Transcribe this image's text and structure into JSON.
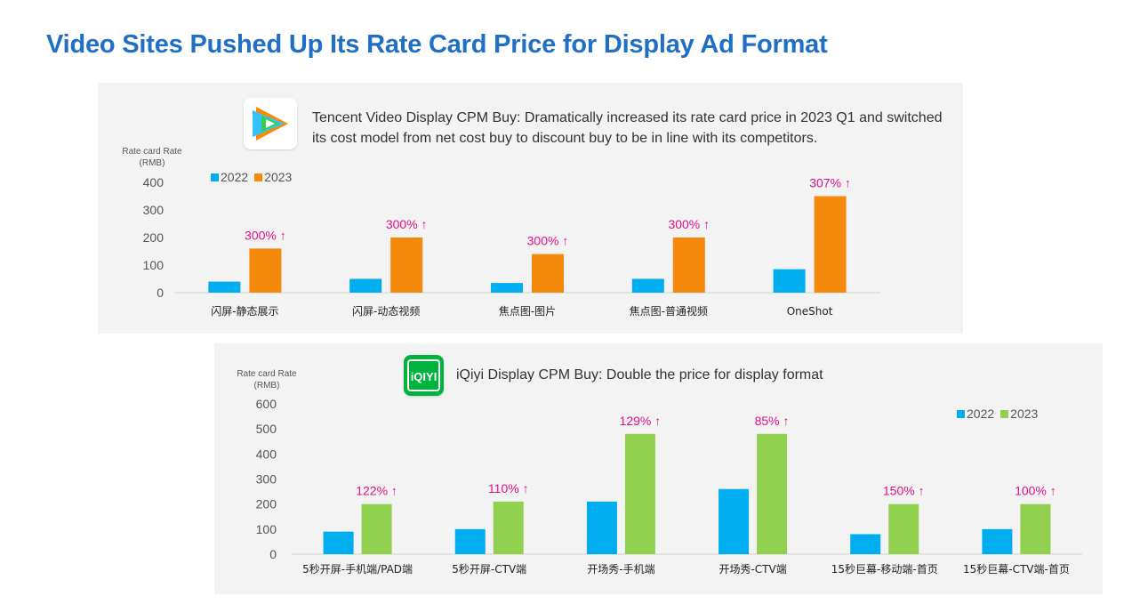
{
  "page": {
    "title": "Video Sites Pushed Up Its Rate Card Price for Display Ad Format"
  },
  "colors": {
    "title": "#1f6fc4",
    "series_2022": "#00aeef",
    "tencent_2023": "#f5890c",
    "iqiyi_2023": "#92d050",
    "annotation": "#e0108a",
    "panel_bg": "#f3f3f3"
  },
  "tencent": {
    "logo_icon": "tencent-video-play-icon",
    "headline": "Tencent Video Display CPM Buy: Dramatically increased its rate card price in 2023 Q1 and switched its cost model from net cost buy to discount buy to be in line with its competitors.",
    "ylabel_line1": "Rate card Rate",
    "ylabel_line2": "(RMB)"
  },
  "iqiyi": {
    "logo_icon": "iqiyi-logo-icon",
    "logo_text": "iQIYI",
    "headline": "iQiyi Display CPM Buy: Double the price for display format",
    "ylabel_line1": "Rate card Rate",
    "ylabel_line2": "(RMB)"
  },
  "chart_data": [
    {
      "type": "bar",
      "title": "Tencent Video Display CPM Buy: Dramatically increased its rate card price in 2023 Q1 and switched its cost model from net cost buy to discount buy to be in line with its competitors.",
      "ylabel": "Rate card Rate (RMB)",
      "ylim": [
        0,
        400
      ],
      "yticks": [
        0,
        100,
        200,
        300,
        400
      ],
      "grid": false,
      "legend_position": "top-left",
      "categories": [
        "闪屏-静态展示",
        "闪屏-动态视频",
        "焦点图-图片",
        "焦点图-普通视频",
        "OneShot"
      ],
      "series": [
        {
          "name": "2022",
          "values": [
            40,
            50,
            35,
            50,
            85
          ]
        },
        {
          "name": "2023",
          "values": [
            160,
            200,
            140,
            200,
            350
          ]
        }
      ],
      "annotations": [
        "300% ↑",
        "300% ↑",
        "300% ↑",
        "300% ↑",
        "307% ↑"
      ]
    },
    {
      "type": "bar",
      "title": "iQiyi Display CPM Buy: Double the price for display format",
      "ylabel": "Rate card Rate (RMB)",
      "ylim": [
        0,
        600
      ],
      "yticks": [
        0,
        100,
        200,
        300,
        400,
        500,
        600
      ],
      "grid": false,
      "legend_position": "top-right",
      "categories": [
        "5秒开屏-手机端/PAD端",
        "5秒开屏-CTV端",
        "开场秀-手机端",
        "开场秀-CTV端",
        "15秒巨幕-移动端-首页",
        "15秒巨幕-CTV端-首页"
      ],
      "series": [
        {
          "name": "2022",
          "values": [
            90,
            100,
            210,
            260,
            80,
            100
          ]
        },
        {
          "name": "2023",
          "values": [
            200,
            210,
            480,
            480,
            200,
            200
          ]
        }
      ],
      "annotations": [
        "122% ↑",
        "110% ↑",
        "129% ↑",
        "85% ↑",
        "150% ↑",
        "100% ↑"
      ]
    }
  ]
}
